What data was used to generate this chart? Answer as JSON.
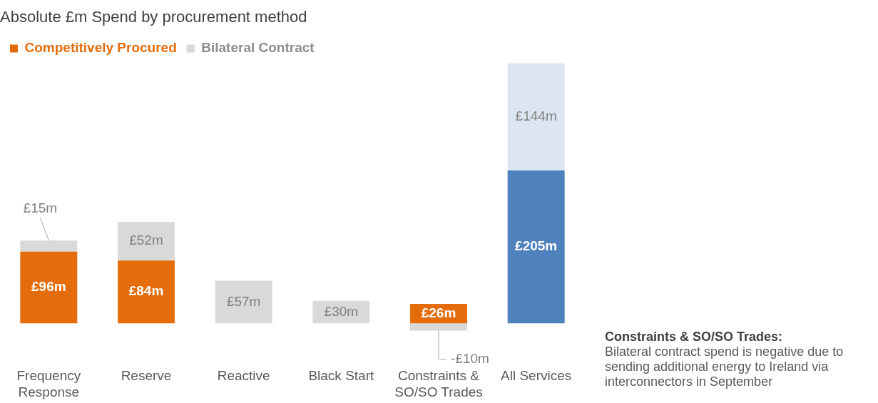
{
  "chart_data": {
    "type": "bar",
    "title": "Absolute £m Spend by procurement method",
    "stacked": true,
    "legend": "top left",
    "categories": [
      "Frequency Response",
      "Reserve",
      "Reactive",
      "Black Start",
      "Constraints & SO/SO Trades",
      "All Services"
    ],
    "series": [
      {
        "name": "Competitively Procured",
        "color": "#e46c0a",
        "colors": [
          "#e46c0a",
          "#e46c0a",
          "#e46c0a",
          "#e46c0a",
          "#e46c0a",
          "#4f81bd"
        ],
        "values": [
          96,
          84,
          null,
          null,
          26,
          205
        ],
        "value_labels": [
          "£96m",
          "£84m",
          null,
          null,
          "£26m",
          "£205m"
        ]
      },
      {
        "name": "Bilateral Contract",
        "color": "#d9d9d9",
        "colors": [
          "#d9d9d9",
          "#d9d9d9",
          "#d9d9d9",
          "#d9d9d9",
          "#d9d9d9",
          "#dce6f2"
        ],
        "values": [
          15,
          52,
          57,
          30,
          -10,
          144
        ],
        "value_labels": [
          "£15m",
          "£52m",
          "£57m",
          "£30m",
          "-£10m",
          "£144m"
        ]
      }
    ],
    "annotations": [
      "Constraints & SO/SO Trades:",
      "Bilateral contract spend is negative due to sending additional energy to Ireland via interconnectors in September"
    ]
  }
}
